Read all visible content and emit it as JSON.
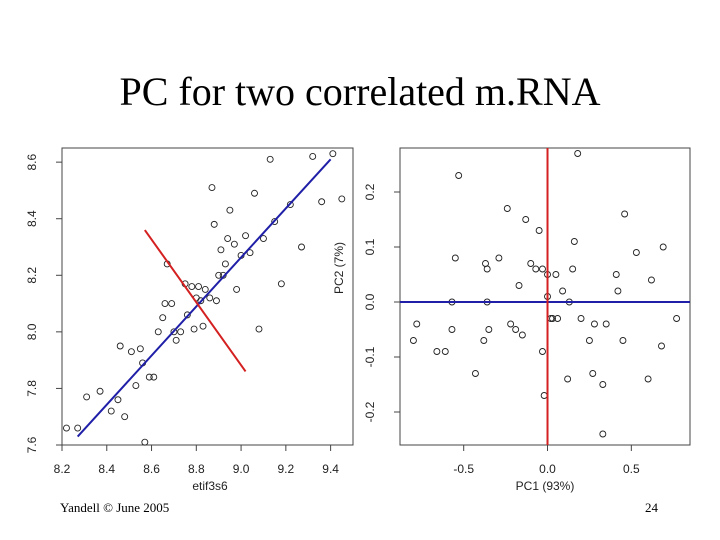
{
  "slide": {
    "title": "PC for two correlated m.RNA",
    "footer_left": "Yandell © June 2005",
    "page_number": "24"
  },
  "chart_data": [
    {
      "type": "scatter",
      "xlabel": "etif3s6",
      "ylabel": "",
      "xlim": [
        8.2,
        9.5
      ],
      "ylim": [
        7.6,
        8.65
      ],
      "xticks": [
        "8.2",
        "8.4",
        "8.6",
        "8.8",
        "9.0",
        "9.2",
        "9.4"
      ],
      "yticks": [
        "7.6",
        "7.8",
        "8.0",
        "8.2",
        "8.4",
        "8.6"
      ],
      "grid": false,
      "points": [
        [
          8.22,
          7.66
        ],
        [
          8.27,
          7.66
        ],
        [
          8.31,
          7.77
        ],
        [
          8.37,
          7.79
        ],
        [
          8.42,
          7.72
        ],
        [
          8.45,
          7.76
        ],
        [
          8.46,
          7.95
        ],
        [
          8.48,
          7.7
        ],
        [
          8.51,
          7.93
        ],
        [
          8.53,
          7.81
        ],
        [
          8.55,
          7.94
        ],
        [
          8.56,
          7.89
        ],
        [
          8.57,
          7.61
        ],
        [
          8.59,
          7.84
        ],
        [
          8.61,
          7.84
        ],
        [
          8.63,
          8.0
        ],
        [
          8.65,
          8.05
        ],
        [
          8.66,
          8.1
        ],
        [
          8.67,
          8.24
        ],
        [
          8.69,
          8.1
        ],
        [
          8.7,
          8.0
        ],
        [
          8.71,
          7.97
        ],
        [
          8.73,
          8.0
        ],
        [
          8.75,
          8.17
        ],
        [
          8.76,
          8.06
        ],
        [
          8.78,
          8.16
        ],
        [
          8.79,
          8.01
        ],
        [
          8.8,
          8.12
        ],
        [
          8.81,
          8.16
        ],
        [
          8.82,
          8.11
        ],
        [
          8.83,
          8.02
        ],
        [
          8.84,
          8.15
        ],
        [
          8.86,
          8.12
        ],
        [
          8.87,
          8.51
        ],
        [
          8.88,
          8.38
        ],
        [
          8.89,
          8.11
        ],
        [
          8.9,
          8.2
        ],
        [
          8.91,
          8.29
        ],
        [
          8.92,
          8.2
        ],
        [
          8.93,
          8.24
        ],
        [
          8.94,
          8.33
        ],
        [
          8.95,
          8.43
        ],
        [
          8.97,
          8.31
        ],
        [
          8.98,
          8.15
        ],
        [
          9.0,
          8.27
        ],
        [
          9.02,
          8.34
        ],
        [
          9.04,
          8.28
        ],
        [
          9.06,
          8.49
        ],
        [
          9.08,
          8.01
        ],
        [
          9.1,
          8.33
        ],
        [
          9.13,
          8.61
        ],
        [
          9.15,
          8.39
        ],
        [
          9.18,
          8.17
        ],
        [
          9.22,
          8.45
        ],
        [
          9.27,
          8.3
        ],
        [
          9.32,
          8.62
        ],
        [
          9.36,
          8.46
        ],
        [
          9.41,
          8.63
        ],
        [
          9.45,
          8.47
        ]
      ],
      "fit_line": {
        "color": "#1f1fa8",
        "from": [
          8.27,
          7.63
        ],
        "to": [
          9.4,
          8.61
        ]
      },
      "pc2_line": {
        "color": "#d42020",
        "from": [
          8.57,
          8.36
        ],
        "to": [
          9.02,
          7.86
        ]
      },
      "point_color": "#222222"
    },
    {
      "type": "scatter",
      "xlabel": "PC1 (93%)",
      "ylabel": "PC2 (7%)",
      "xlim": [
        -0.88,
        0.85
      ],
      "ylim": [
        -0.26,
        0.28
      ],
      "xticks": [
        "-0.5",
        "0.0",
        "0.5"
      ],
      "yticks": [
        "-0.2",
        "-0.1",
        "0.0",
        "0.1",
        "0.2"
      ],
      "grid": false,
      "points": [
        [
          -0.78,
          -0.04
        ],
        [
          -0.8,
          -0.07
        ],
        [
          -0.66,
          -0.09
        ],
        [
          -0.61,
          -0.09
        ],
        [
          -0.57,
          -0.05
        ],
        [
          -0.53,
          0.23
        ],
        [
          -0.55,
          0.08
        ],
        [
          -0.57,
          0.0
        ],
        [
          -0.43,
          -0.13
        ],
        [
          -0.38,
          -0.07
        ],
        [
          -0.35,
          -0.05
        ],
        [
          -0.36,
          0.06
        ],
        [
          -0.37,
          0.07
        ],
        [
          -0.36,
          0.0
        ],
        [
          -0.29,
          0.08
        ],
        [
          -0.24,
          0.17
        ],
        [
          -0.22,
          -0.04
        ],
        [
          -0.19,
          -0.05
        ],
        [
          -0.17,
          0.03
        ],
        [
          -0.15,
          -0.06
        ],
        [
          -0.13,
          0.15
        ],
        [
          -0.1,
          0.07
        ],
        [
          -0.07,
          0.06
        ],
        [
          -0.05,
          0.13
        ],
        [
          -0.03,
          -0.09
        ],
        [
          -0.03,
          0.06
        ],
        [
          -0.02,
          -0.17
        ],
        [
          0.0,
          0.01
        ],
        [
          0.0,
          0.05
        ],
        [
          0.02,
          -0.03
        ],
        [
          0.03,
          -0.03
        ],
        [
          0.05,
          0.05
        ],
        [
          0.06,
          -0.03
        ],
        [
          0.09,
          0.02
        ],
        [
          0.12,
          -0.14
        ],
        [
          0.13,
          0.0
        ],
        [
          0.15,
          0.06
        ],
        [
          0.16,
          0.11
        ],
        [
          0.18,
          0.27
        ],
        [
          0.2,
          -0.03
        ],
        [
          0.25,
          -0.07
        ],
        [
          0.27,
          -0.13
        ],
        [
          0.28,
          -0.04
        ],
        [
          0.33,
          -0.15
        ],
        [
          0.33,
          -0.24
        ],
        [
          0.35,
          -0.04
        ],
        [
          0.41,
          0.05
        ],
        [
          0.42,
          0.02
        ],
        [
          0.46,
          0.16
        ],
        [
          0.45,
          -0.07
        ],
        [
          0.53,
          0.09
        ],
        [
          0.6,
          -0.14
        ],
        [
          0.62,
          0.04
        ],
        [
          0.68,
          -0.08
        ],
        [
          0.69,
          0.1
        ],
        [
          0.77,
          -0.03
        ]
      ],
      "hline": {
        "color": "#1f1fa8",
        "y": 0.0
      },
      "vline": {
        "color": "#d42020",
        "x": 0.0
      },
      "point_color": "#222222"
    }
  ]
}
